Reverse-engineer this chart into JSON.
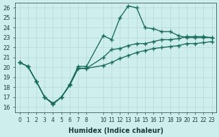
{
  "xlabel": "Humidex (Indice chaleur)",
  "ylabel": "",
  "bg_color": "#ceeeed",
  "line_color": "#1a6b5a",
  "grid_color": "#b0d8d8",
  "xlim": [
    -0.5,
    23.5
  ],
  "ylim": [
    15.5,
    26.5
  ],
  "xticks": [
    0,
    1,
    2,
    3,
    4,
    5,
    6,
    7,
    8,
    10,
    11,
    12,
    13,
    14,
    15,
    16,
    17,
    18,
    19,
    20,
    21,
    22,
    23
  ],
  "yticks": [
    16,
    17,
    18,
    19,
    20,
    21,
    22,
    23,
    24,
    25,
    26
  ],
  "line1_x": [
    0,
    1,
    2,
    3,
    4,
    5,
    6,
    7,
    8,
    10,
    11,
    12,
    13,
    14,
    15,
    16,
    17,
    18,
    19,
    20,
    21,
    22,
    23
  ],
  "line1_y": [
    20.5,
    20.1,
    18.6,
    17.0,
    16.4,
    17.0,
    18.3,
    20.1,
    20.1,
    23.2,
    22.8,
    25.0,
    26.2,
    26.0,
    24.0,
    23.9,
    23.6,
    23.6,
    23.2,
    23.0,
    23.0,
    23.0,
    23.0
  ],
  "line2_x": [
    0,
    1,
    2,
    3,
    4,
    5,
    6,
    7,
    8,
    10,
    11,
    12,
    13,
    14,
    15,
    16,
    17,
    18,
    19,
    20,
    21,
    22,
    23
  ],
  "line2_y": [
    20.5,
    20.1,
    18.6,
    17.0,
    16.3,
    17.0,
    18.2,
    19.9,
    19.9,
    21.0,
    21.8,
    21.9,
    22.2,
    22.4,
    22.4,
    22.6,
    22.8,
    22.8,
    22.9,
    23.1,
    23.1,
    23.1,
    23.0
  ],
  "line3_x": [
    0,
    1,
    2,
    3,
    4,
    5,
    6,
    7,
    8,
    10,
    11,
    12,
    13,
    14,
    15,
    16,
    17,
    18,
    19,
    20,
    21,
    22,
    23
  ],
  "line3_y": [
    20.5,
    20.1,
    18.6,
    17.0,
    16.3,
    17.0,
    18.2,
    19.9,
    19.9,
    20.2,
    20.5,
    20.9,
    21.2,
    21.5,
    21.7,
    21.9,
    22.0,
    22.1,
    22.2,
    22.4,
    22.4,
    22.5,
    22.6
  ]
}
